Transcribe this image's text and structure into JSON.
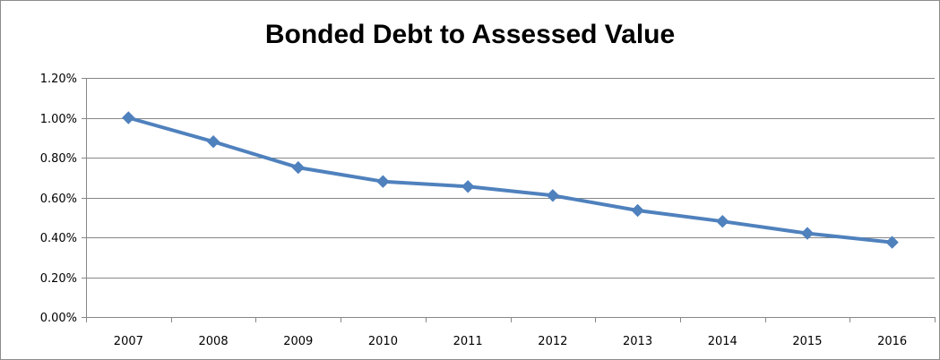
{
  "chart_data": {
    "type": "line",
    "title": "Bonded Debt to Assessed Value",
    "xlabel": "",
    "ylabel": "",
    "categories": [
      "2007",
      "2008",
      "2009",
      "2010",
      "2011",
      "2012",
      "2013",
      "2014",
      "2015",
      "2016"
    ],
    "series": [
      {
        "values": [
          1.0,
          0.88,
          0.75,
          0.68,
          0.655,
          0.61,
          0.535,
          0.48,
          0.42,
          0.375
        ]
      }
    ],
    "ylim": [
      0,
      1.2
    ],
    "yticks": [
      "0.00%",
      "0.20%",
      "0.40%",
      "0.60%",
      "0.80%",
      "1.00%",
      "1.20%"
    ],
    "y_format": "percent",
    "grid": true,
    "legend": "none",
    "colors": {
      "line": "#4f81bd",
      "grid": "#878787",
      "axis": "#878787"
    },
    "marker": "diamond"
  }
}
